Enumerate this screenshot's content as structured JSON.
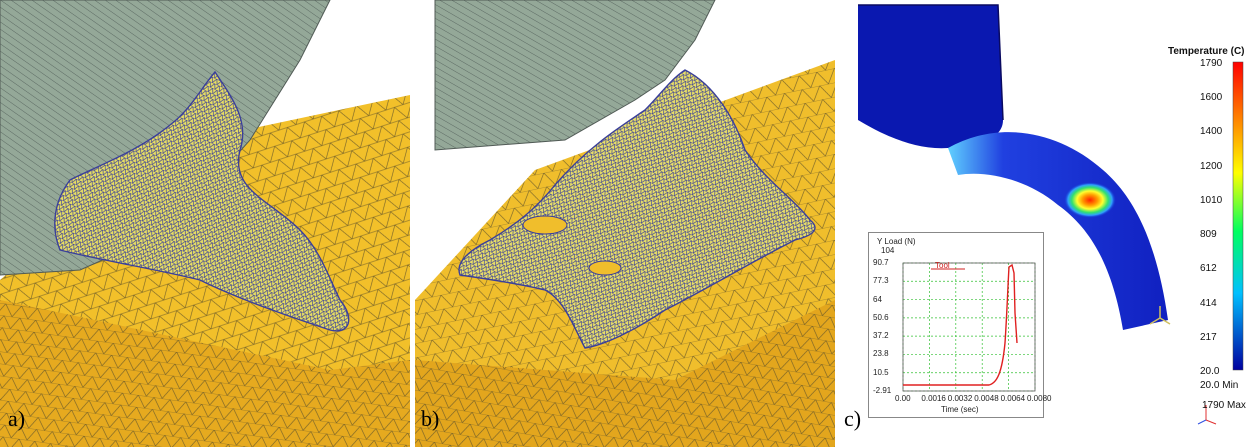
{
  "panels": [
    {
      "label": "a)"
    },
    {
      "label": "b)"
    },
    {
      "label": "c)"
    }
  ],
  "thermal": {
    "colorbar": {
      "title": "Temperature (C)",
      "ticks": [
        "1790",
        "1600",
        "1400",
        "1200",
        "1010",
        "809",
        "612",
        "414",
        "217",
        "20.0"
      ],
      "min_label": "20.0  Min",
      "max_label": "1790  Max"
    },
    "load_plot": {
      "ylabel": "Y Load (N)",
      "ymax_label": "104",
      "y_ticks": [
        "90.7",
        "77.3",
        "64",
        "50.6",
        "37.2",
        "23.8",
        "10.5",
        "-2.91"
      ],
      "x_ticks": [
        "0.00",
        "0.0016",
        "0.0032",
        "0.0048",
        "0.0064",
        "0.0080"
      ],
      "xlabel": "Time (sec)",
      "legend": "Tool"
    }
  },
  "colors": {
    "tool_gray": "#8fa393",
    "workpiece_yellow": "#f2c02a",
    "mesh_blue": "#3a3f9a",
    "heat_deep_blue": "#0a18b0"
  }
}
